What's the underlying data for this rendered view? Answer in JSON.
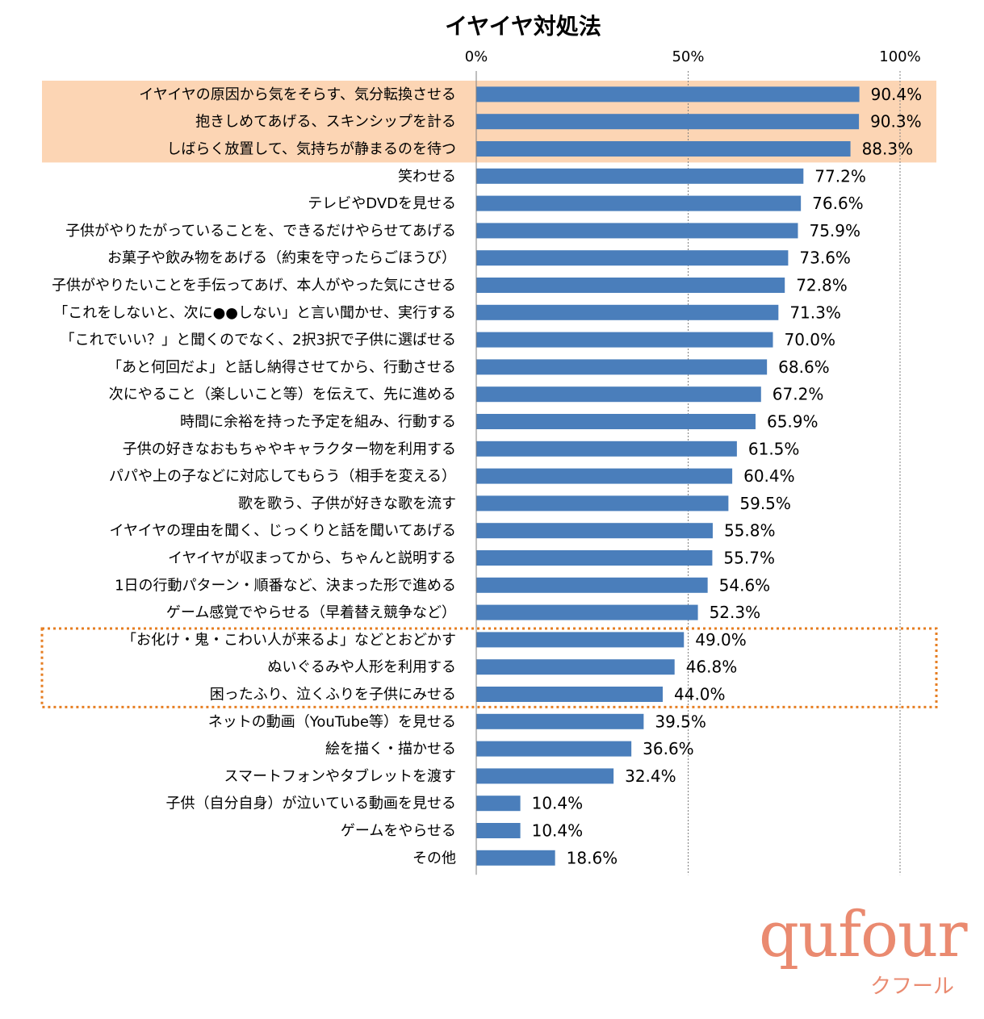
{
  "chart_data": {
    "type": "bar",
    "orientation": "horizontal",
    "title": "イヤイヤ対処法",
    "xlim": [
      0,
      100
    ],
    "ticks": [
      "0%",
      "50%",
      "100%"
    ],
    "tick_values": [
      0,
      50,
      100
    ],
    "grid": true,
    "bar_color": "#4a7ebb",
    "highlight_fill_color": "#fcd5b4",
    "dotted_border_color": "#e67e22",
    "highlight_fill_rows": [
      0,
      1,
      2
    ],
    "dotted_box_rows": [
      20,
      21,
      22
    ],
    "categories": [
      "イヤイヤの原因から気をそらす、気分転換させる",
      "抱きしめてあげる、スキンシップを計る",
      "しばらく放置して、気持ちが静まるのを待つ",
      "笑わせる",
      "テレビやDVDを見せる",
      "子供がやりたがっていることを、できるだけやらせてあげる",
      "お菓子や飲み物をあげる（約束を守ったらごほうび）",
      "子供がやりたいことを手伝ってあげ、本人がやった気にさせる",
      "「これをしないと、次に●●しない」と言い聞かせ、実行する",
      "「これでいい？」と聞くのでなく、2択3択で子供に選ばせる",
      "「あと何回だよ」と話し納得させてから、行動させる",
      "次にやること（楽しいこと等）を伝えて、先に進める",
      "時間に余裕を持った予定を組み、行動する",
      "子供の好きなおもちゃやキャラクター物を利用する",
      "パパや上の子などに対応してもらう（相手を変える）",
      "歌を歌う、子供が好きな歌を流す",
      "イヤイヤの理由を聞く、じっくりと話を聞いてあげる",
      "イヤイヤが収まってから、ちゃんと説明する",
      "1日の行動パターン・順番など、決まった形で進める",
      "ゲーム感覚でやらせる（早着替え競争など）",
      "「お化け・鬼・こわい人が来るよ」などとおどかす",
      "ぬいぐるみや人形を利用する",
      "困ったふり、泣くふりを子供にみせる",
      "ネットの動画（YouTube等）を見せる",
      "絵を描く・描かせる",
      "スマートフォンやタブレットを渡す",
      "子供（自分自身）が泣いている動画を見せる",
      "ゲームをやらせる",
      "その他"
    ],
    "values": [
      90.4,
      90.3,
      88.3,
      77.2,
      76.6,
      75.9,
      73.6,
      72.8,
      71.3,
      70.0,
      68.6,
      67.2,
      65.9,
      61.5,
      60.4,
      59.5,
      55.8,
      55.7,
      54.6,
      52.3,
      49.0,
      46.8,
      44.0,
      39.5,
      36.6,
      32.4,
      10.4,
      10.4,
      18.6
    ],
    "value_labels": [
      "90.4%",
      "90.3%",
      "88.3%",
      "77.2%",
      "76.6%",
      "75.9%",
      "73.6%",
      "72.8%",
      "71.3%",
      "70.0%",
      "68.6%",
      "67.2%",
      "65.9%",
      "61.5%",
      "60.4%",
      "59.5%",
      "55.8%",
      "55.7%",
      "54.6%",
      "52.3%",
      "49.0%",
      "46.8%",
      "44.0%",
      "39.5%",
      "36.6%",
      "32.4%",
      "10.4%",
      "10.4%",
      "18.6%"
    ]
  },
  "logo": {
    "wordmark": "qufour",
    "subtitle": "クフール",
    "color": "#ea8a70"
  }
}
